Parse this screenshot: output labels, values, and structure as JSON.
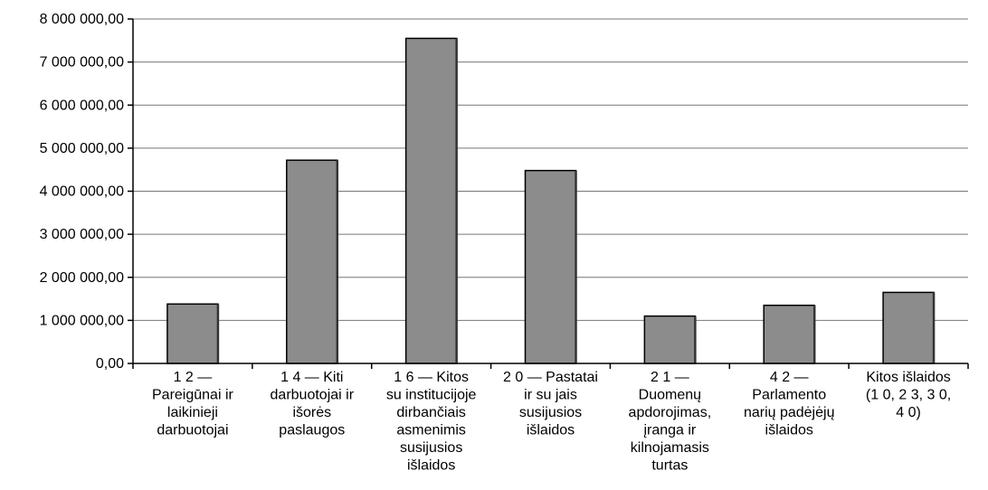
{
  "chart_data": {
    "type": "bar",
    "title": "",
    "xlabel": "",
    "ylabel": "",
    "ylim": [
      0,
      8000000
    ],
    "yticks": [
      "0,00",
      "1 000 000,00",
      "2 000 000,00",
      "3 000 000,00",
      "4 000 000,00",
      "5 000 000,00",
      "6 000 000,00",
      "7 000 000,00",
      "8 000 000,00"
    ],
    "grid": true,
    "legend": "none",
    "categories": [
      [
        "1 2 —",
        "Pareigūnai ir",
        "laikinieji",
        "darbuotojai"
      ],
      [
        "1 4 — Kiti",
        "darbuotojai ir",
        "išorės",
        "paslaugos"
      ],
      [
        "1 6 — Kitos",
        "su institucijoje",
        "dirbančiais",
        "asmenimis",
        "susijusios",
        "išlaidos"
      ],
      [
        "2 0 — Pastatai",
        "ir su jais",
        "susijusios",
        "išlaidos"
      ],
      [
        "2 1 —",
        "Duomenų",
        "apdorojimas,",
        "įranga ir",
        "kilnojamasis",
        "turtas"
      ],
      [
        "4 2 —",
        "Parlamento",
        "narių padėjėjų",
        "išlaidos"
      ],
      [
        "Kitos išlaidos",
        "(1 0, 2 3, 3 0,",
        "4 0)"
      ]
    ],
    "values": [
      1380000,
      4720000,
      7550000,
      4480000,
      1100000,
      1350000,
      1650000
    ],
    "colors": {
      "bar": "#8c8c8c",
      "bar_stroke": "#000000",
      "grid": "#777777",
      "axis": "#000000"
    }
  }
}
